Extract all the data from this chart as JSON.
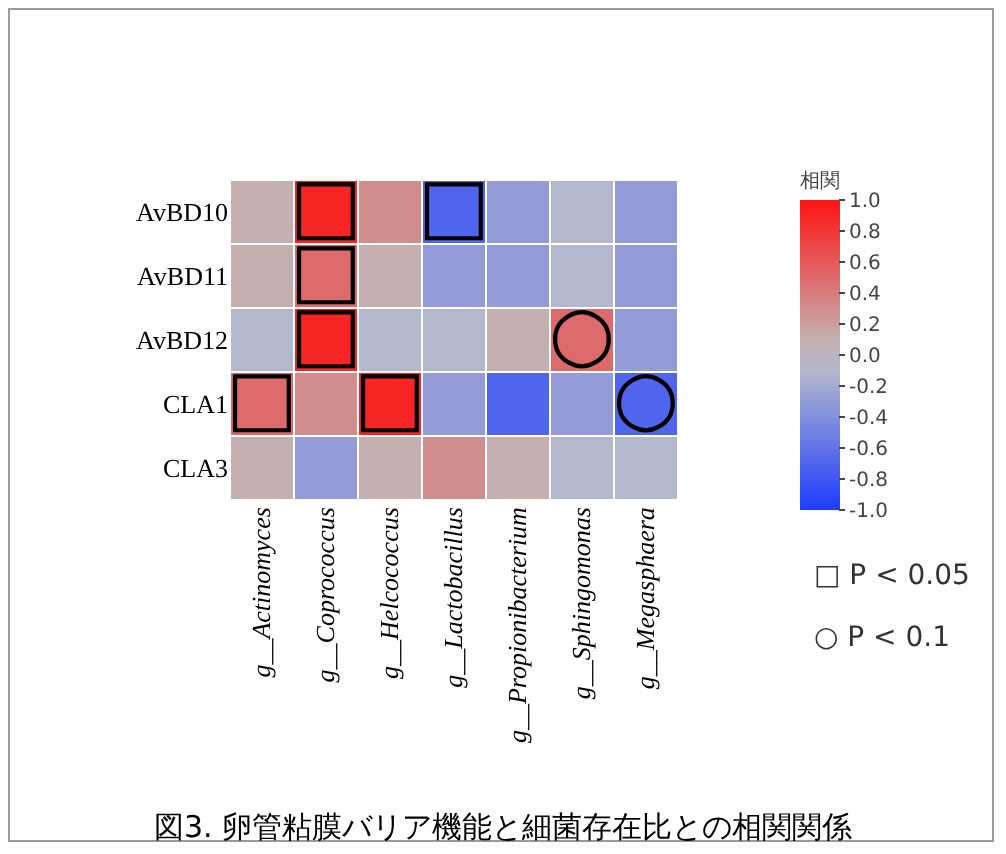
{
  "chart_data": {
    "type": "heatmap",
    "title": "図3. 卵管粘膜バリア機能と細菌存在比との相関関係",
    "clabel": "相関",
    "categories": [
      "g__Actinomyces",
      "g__Coprococcus",
      "g__Helcococcus",
      "g__Lactobacillus",
      "g__Propionibacterium",
      "g__Sphingomonas",
      "g__Megasphaera"
    ],
    "y_categories": [
      "AvBD10",
      "AvBD11",
      "AvBD12",
      "CLA1",
      "CLA3"
    ],
    "cells": [
      [
        0.1,
        0.9,
        0.3,
        -0.7,
        -0.3,
        -0.1,
        -0.3
      ],
      [
        0.1,
        0.5,
        0.1,
        -0.3,
        -0.3,
        -0.1,
        -0.3
      ],
      [
        -0.1,
        0.9,
        -0.1,
        -0.1,
        0.1,
        0.5,
        -0.3
      ],
      [
        0.5,
        0.3,
        0.9,
        -0.3,
        -0.7,
        -0.3,
        -0.7
      ],
      [
        0.1,
        -0.3,
        0.1,
        0.3,
        0.1,
        -0.1,
        -0.1
      ]
    ],
    "cell_labels": [
      [
        null,
        "□",
        null,
        "□",
        null,
        null,
        null
      ],
      [
        null,
        "□",
        null,
        null,
        null,
        null,
        null
      ],
      [
        null,
        "□",
        null,
        null,
        null,
        "○",
        null
      ],
      [
        "□",
        null,
        "□",
        null,
        null,
        null,
        "○"
      ],
      [
        null,
        null,
        null,
        null,
        null,
        null,
        null
      ]
    ],
    "clim": [
      -1,
      1
    ],
    "cticks": [
      {
        "value": 1,
        "label": "1.0"
      },
      {
        "value": 0.8,
        "label": "0.8"
      },
      {
        "value": 0.6,
        "label": "0.6"
      },
      {
        "value": 0.4,
        "label": "0.4"
      },
      {
        "value": 0.2,
        "label": "0.2"
      },
      {
        "value": 0,
        "label": "0.0"
      },
      {
        "value": -0.2,
        "label": "-0.2"
      },
      {
        "value": -0.4,
        "label": "-0.4"
      },
      {
        "value": -0.6,
        "label": "-0.6"
      },
      {
        "value": -0.8,
        "label": "-0.8"
      },
      {
        "value": -1,
        "label": "-1.0"
      }
    ],
    "annotations": [
      "□ P < 0.05",
      "○ P < 0.1"
    ]
  }
}
